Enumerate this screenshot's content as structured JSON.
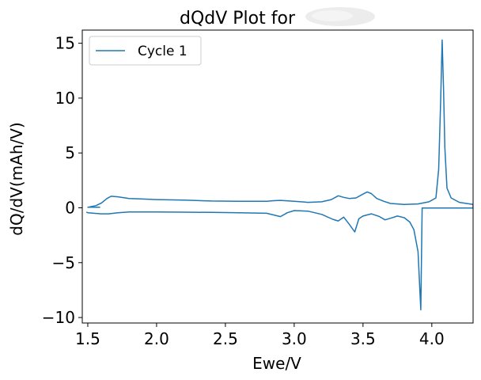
{
  "chart_data": {
    "type": "line",
    "title": "dQdV Plot for",
    "xlabel": "Ewe/V",
    "ylabel": "dQ/dV(mAh/V)",
    "xlim": [
      1.46,
      4.3
    ],
    "ylim": [
      -10.5,
      16.2
    ],
    "xticks": [
      1.5,
      2.0,
      2.5,
      3.0,
      3.5,
      4.0
    ],
    "xtick_labels": [
      "1.5",
      "2.0",
      "2.5",
      "3.0",
      "3.5",
      "4.0"
    ],
    "yticks": [
      -10,
      -5,
      0,
      5,
      10,
      15
    ],
    "ytick_labels": [
      "−10",
      "−5",
      "0",
      "5",
      "10",
      "15"
    ],
    "legend": {
      "position": "top-left",
      "entries": [
        "Cycle 1"
      ]
    },
    "grid": false,
    "series": [
      {
        "name": "Cycle 1",
        "color": "#1f77b4",
        "points": [
          [
            1.59,
            0.05
          ],
          [
            1.5,
            0.05
          ],
          [
            1.56,
            0.2
          ],
          [
            1.6,
            0.45
          ],
          [
            1.64,
            0.85
          ],
          [
            1.67,
            1.05
          ],
          [
            1.72,
            1.0
          ],
          [
            1.8,
            0.85
          ],
          [
            1.9,
            0.8
          ],
          [
            2.0,
            0.75
          ],
          [
            2.2,
            0.7
          ],
          [
            2.4,
            0.62
          ],
          [
            2.6,
            0.6
          ],
          [
            2.8,
            0.6
          ],
          [
            2.85,
            0.65
          ],
          [
            2.9,
            0.68
          ],
          [
            3.0,
            0.6
          ],
          [
            3.1,
            0.5
          ],
          [
            3.2,
            0.55
          ],
          [
            3.27,
            0.75
          ],
          [
            3.32,
            1.1
          ],
          [
            3.36,
            0.95
          ],
          [
            3.4,
            0.85
          ],
          [
            3.45,
            0.9
          ],
          [
            3.5,
            1.25
          ],
          [
            3.53,
            1.45
          ],
          [
            3.56,
            1.3
          ],
          [
            3.6,
            0.85
          ],
          [
            3.65,
            0.6
          ],
          [
            3.7,
            0.4
          ],
          [
            3.8,
            0.3
          ],
          [
            3.9,
            0.35
          ],
          [
            3.98,
            0.55
          ],
          [
            4.03,
            0.9
          ],
          [
            4.05,
            3.5
          ],
          [
            4.065,
            10.0
          ],
          [
            4.075,
            15.3
          ],
          [
            4.085,
            11.0
          ],
          [
            4.095,
            5.5
          ],
          [
            4.11,
            1.8
          ],
          [
            4.14,
            0.9
          ],
          [
            4.2,
            0.5
          ],
          [
            4.3,
            0.3
          ],
          [
            4.3,
            -0.02
          ],
          [
            4.1,
            -0.02
          ],
          [
            3.93,
            -0.02
          ],
          [
            3.92,
            -9.3
          ],
          [
            3.9,
            -4.0
          ],
          [
            3.87,
            -2.0
          ],
          [
            3.84,
            -1.3
          ],
          [
            3.8,
            -0.9
          ],
          [
            3.75,
            -0.75
          ],
          [
            3.7,
            -0.95
          ],
          [
            3.66,
            -1.1
          ],
          [
            3.62,
            -0.8
          ],
          [
            3.56,
            -0.55
          ],
          [
            3.5,
            -0.75
          ],
          [
            3.47,
            -1.0
          ],
          [
            3.44,
            -2.2
          ],
          [
            3.4,
            -1.5
          ],
          [
            3.36,
            -0.85
          ],
          [
            3.32,
            -1.2
          ],
          [
            3.28,
            -1.05
          ],
          [
            3.2,
            -0.6
          ],
          [
            3.1,
            -0.3
          ],
          [
            3.0,
            -0.25
          ],
          [
            2.95,
            -0.45
          ],
          [
            2.9,
            -0.8
          ],
          [
            2.85,
            -0.65
          ],
          [
            2.8,
            -0.5
          ],
          [
            2.6,
            -0.45
          ],
          [
            2.4,
            -0.42
          ],
          [
            2.2,
            -0.4
          ],
          [
            2.0,
            -0.38
          ],
          [
            1.8,
            -0.38
          ],
          [
            1.72,
            -0.45
          ],
          [
            1.65,
            -0.55
          ],
          [
            1.6,
            -0.55
          ],
          [
            1.5,
            -0.45
          ],
          [
            1.49,
            -0.4
          ]
        ]
      }
    ]
  }
}
